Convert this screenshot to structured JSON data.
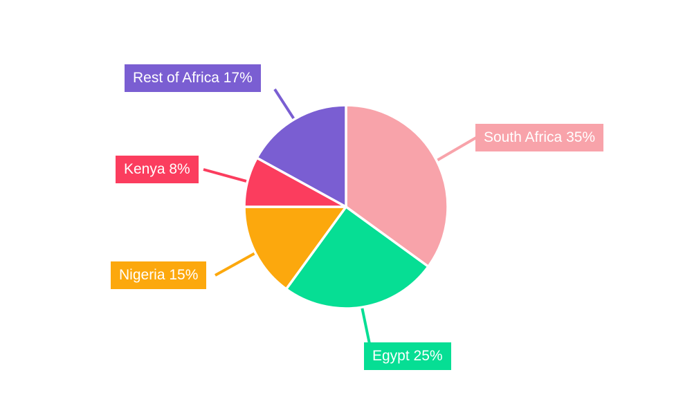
{
  "chart_data": {
    "type": "pie",
    "total": 100,
    "start_angle_deg": 0,
    "direction": "clockwise",
    "background_color": "#ffffff",
    "slice_gap_color": "#ffffff",
    "label_text_color": "#ffffff",
    "legend": "none",
    "slices": [
      {
        "label": "South Africa",
        "value": 35,
        "label_text": "South Africa 35%",
        "color": "#F8A3AA"
      },
      {
        "label": "Egypt",
        "value": 25,
        "label_text": "Egypt 25%",
        "color": "#06DE94"
      },
      {
        "label": "Nigeria",
        "value": 15,
        "label_text": "Nigeria 15%",
        "color": "#FCA80D"
      },
      {
        "label": "Kenya",
        "value": 8,
        "label_text": "Kenya 8%",
        "color": "#FB3D5E"
      },
      {
        "label": "Rest of Africa",
        "value": 17,
        "label_text": "Rest of Africa 17%",
        "color": "#7A5ED2"
      }
    ]
  }
}
